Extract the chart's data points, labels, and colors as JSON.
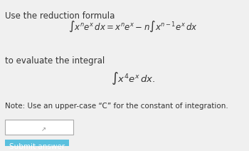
{
  "bg_color": "#f0f0f0",
  "title_text": "Use the reduction formula",
  "formula_text": "$\\int x^n e^x\\, dx = x^n e^x - n\\int x^{n-1} e^x\\, dx$",
  "eval_text": "to evaluate the integral",
  "integral_text": "$\\int x^4 e^x\\, dx.$",
  "note_text": "Note: Use an upper-case “C” for the constant of integration.",
  "button_text": "Submit answer",
  "button_color": "#5bc0de",
  "button_text_color": "white",
  "input_box_color": "white",
  "text_color": "#333333"
}
